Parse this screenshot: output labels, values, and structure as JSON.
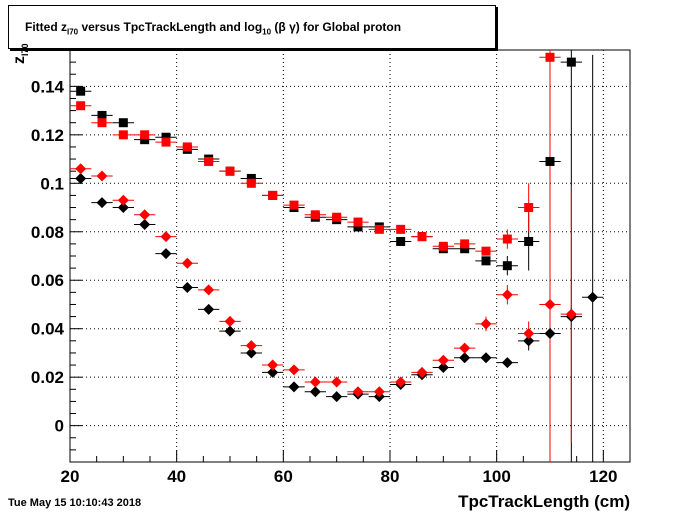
{
  "title": {
    "pre": "Fitted  z",
    "sub1": "I70",
    "mid": "  versus TpcTrackLength and log",
    "sub2": "10",
    "post": " (β γ) for Global proton"
  },
  "date_stamp": "Tue May 15 10:10:43 2018",
  "chart_data": {
    "type": "scatter",
    "title": "Fitted  zI70  versus TpcTrackLength and log10 (β γ) for Global proton",
    "xlabel": "TpcTrackLength (cm)",
    "ylabel": "z_I70",
    "xlim": [
      20,
      125
    ],
    "ylim": [
      -0.015,
      0.155
    ],
    "grid": true,
    "x_ticks": [
      20,
      40,
      60,
      80,
      100,
      120
    ],
    "x_tick_labels": [
      "20",
      "40",
      "60",
      "80",
      "100",
      "120"
    ],
    "y_ticks": [
      0,
      0.02,
      0.04,
      0.06,
      0.08,
      0.1,
      0.12,
      0.14
    ],
    "y_tick_labels": [
      "0",
      "0.02",
      "0.04",
      "0.06",
      "0.08",
      "0.1",
      "0.12",
      "0.14"
    ],
    "series": [
      {
        "marker": "square",
        "color": "#000000",
        "points": [
          {
            "x": 22,
            "y": 0.138
          },
          {
            "x": 26,
            "y": 0.128
          },
          {
            "x": 30,
            "y": 0.125
          },
          {
            "x": 34,
            "y": 0.118
          },
          {
            "x": 38,
            "y": 0.119
          },
          {
            "x": 42,
            "y": 0.114
          },
          {
            "x": 46,
            "y": 0.11
          },
          {
            "x": 50,
            "y": 0.105
          },
          {
            "x": 54,
            "y": 0.102
          },
          {
            "x": 58,
            "y": 0.095
          },
          {
            "x": 62,
            "y": 0.09
          },
          {
            "x": 66,
            "y": 0.086
          },
          {
            "x": 70,
            "y": 0.085
          },
          {
            "x": 74,
            "y": 0.082
          },
          {
            "x": 78,
            "y": 0.082
          },
          {
            "x": 82,
            "y": 0.076
          },
          {
            "x": 86,
            "y": 0.078
          },
          {
            "x": 90,
            "y": 0.073
          },
          {
            "x": 94,
            "y": 0.073
          },
          {
            "x": 98,
            "y": 0.068
          },
          {
            "x": 102,
            "y": 0.066,
            "err": 0.004
          },
          {
            "x": 106,
            "y": 0.076,
            "err": 0.012
          },
          {
            "x": 110,
            "y": 0.109,
            "err": 0.07
          },
          {
            "x": 114,
            "y": 0.15,
            "err": 0.2
          }
        ]
      },
      {
        "marker": "square",
        "color": "#ff0000",
        "points": [
          {
            "x": 22,
            "y": 0.132
          },
          {
            "x": 26,
            "y": 0.125
          },
          {
            "x": 30,
            "y": 0.12
          },
          {
            "x": 34,
            "y": 0.12
          },
          {
            "x": 38,
            "y": 0.117
          },
          {
            "x": 42,
            "y": 0.115
          },
          {
            "x": 46,
            "y": 0.109
          },
          {
            "x": 50,
            "y": 0.105
          },
          {
            "x": 54,
            "y": 0.1
          },
          {
            "x": 58,
            "y": 0.095
          },
          {
            "x": 62,
            "y": 0.091
          },
          {
            "x": 66,
            "y": 0.087
          },
          {
            "x": 70,
            "y": 0.086
          },
          {
            "x": 74,
            "y": 0.084
          },
          {
            "x": 78,
            "y": 0.081
          },
          {
            "x": 82,
            "y": 0.081
          },
          {
            "x": 86,
            "y": 0.078
          },
          {
            "x": 90,
            "y": 0.074
          },
          {
            "x": 94,
            "y": 0.075
          },
          {
            "x": 98,
            "y": 0.072
          },
          {
            "x": 102,
            "y": 0.077,
            "err": 0.004
          },
          {
            "x": 106,
            "y": 0.09,
            "err": 0.01
          },
          {
            "x": 110,
            "y": 0.152,
            "err": 0.2
          }
        ]
      },
      {
        "marker": "diamond",
        "color": "#000000",
        "points": [
          {
            "x": 22,
            "y": 0.102
          },
          {
            "x": 26,
            "y": 0.092
          },
          {
            "x": 30,
            "y": 0.09
          },
          {
            "x": 34,
            "y": 0.083
          },
          {
            "x": 38,
            "y": 0.071
          },
          {
            "x": 42,
            "y": 0.057
          },
          {
            "x": 46,
            "y": 0.048
          },
          {
            "x": 50,
            "y": 0.039
          },
          {
            "x": 54,
            "y": 0.03
          },
          {
            "x": 58,
            "y": 0.022
          },
          {
            "x": 62,
            "y": 0.016
          },
          {
            "x": 66,
            "y": 0.014
          },
          {
            "x": 70,
            "y": 0.012
          },
          {
            "x": 74,
            "y": 0.013
          },
          {
            "x": 78,
            "y": 0.012
          },
          {
            "x": 82,
            "y": 0.017
          },
          {
            "x": 86,
            "y": 0.021
          },
          {
            "x": 90,
            "y": 0.024
          },
          {
            "x": 94,
            "y": 0.028
          },
          {
            "x": 98,
            "y": 0.028
          },
          {
            "x": 102,
            "y": 0.026
          },
          {
            "x": 106,
            "y": 0.035,
            "err": 0.004
          },
          {
            "x": 110,
            "y": 0.038,
            "err": 0.004
          },
          {
            "x": 114,
            "y": 0.045,
            "err": 0.004
          },
          {
            "x": 118,
            "y": 0.053,
            "err": 0.1
          }
        ]
      },
      {
        "marker": "diamond",
        "color": "#ff0000",
        "points": [
          {
            "x": 22,
            "y": 0.106
          },
          {
            "x": 26,
            "y": 0.103
          },
          {
            "x": 30,
            "y": 0.093
          },
          {
            "x": 34,
            "y": 0.087
          },
          {
            "x": 38,
            "y": 0.078
          },
          {
            "x": 42,
            "y": 0.067
          },
          {
            "x": 46,
            "y": 0.056
          },
          {
            "x": 50,
            "y": 0.043
          },
          {
            "x": 54,
            "y": 0.033
          },
          {
            "x": 58,
            "y": 0.025
          },
          {
            "x": 62,
            "y": 0.023
          },
          {
            "x": 66,
            "y": 0.018
          },
          {
            "x": 70,
            "y": 0.018
          },
          {
            "x": 74,
            "y": 0.014
          },
          {
            "x": 78,
            "y": 0.014
          },
          {
            "x": 82,
            "y": 0.018
          },
          {
            "x": 86,
            "y": 0.022
          },
          {
            "x": 90,
            "y": 0.027
          },
          {
            "x": 94,
            "y": 0.032
          },
          {
            "x": 98,
            "y": 0.042,
            "err": 0.003
          },
          {
            "x": 102,
            "y": 0.054,
            "err": 0.004
          },
          {
            "x": 106,
            "y": 0.038,
            "err": 0.005
          },
          {
            "x": 110,
            "y": 0.05,
            "err": 0.032
          },
          {
            "x": 114,
            "y": 0.046,
            "err": 0.053
          }
        ]
      }
    ]
  }
}
